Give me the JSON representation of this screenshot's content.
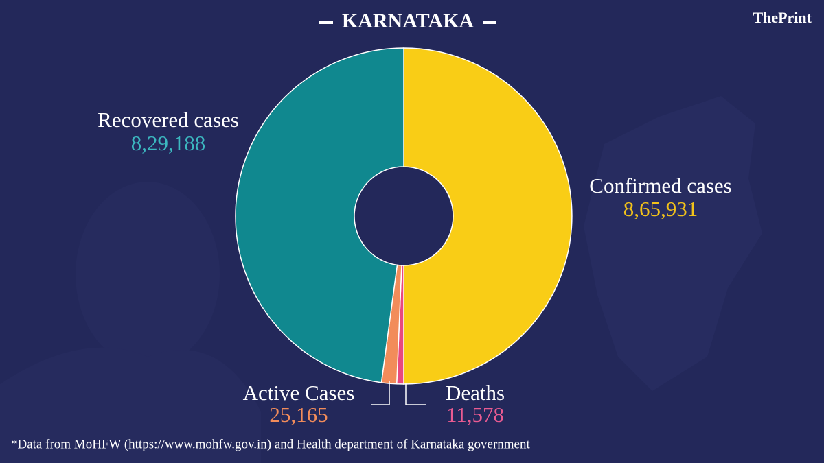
{
  "chart_data": {
    "type": "donut",
    "title": "KARNATAKA",
    "source_logo": "ThePrint",
    "categories": [
      "Confirmed cases",
      "Deaths",
      "Active Cases",
      "Recovered cases"
    ],
    "values": [
      865931,
      11578,
      25165,
      829188
    ],
    "value_labels": [
      "8,65,931",
      "11,578",
      "25,165",
      "8,29,188"
    ],
    "colors": [
      "#f9cd16",
      "#e8487f",
      "#f28c5a",
      "#10888f"
    ],
    "label_colors": [
      "#f2c21a",
      "#ea5b92",
      "#f28c5a",
      "#3cb8c0"
    ],
    "footnote": "*Data from MoHFW (https://www.mohfw.gov.in)  and Health department of  Karnataka government"
  }
}
